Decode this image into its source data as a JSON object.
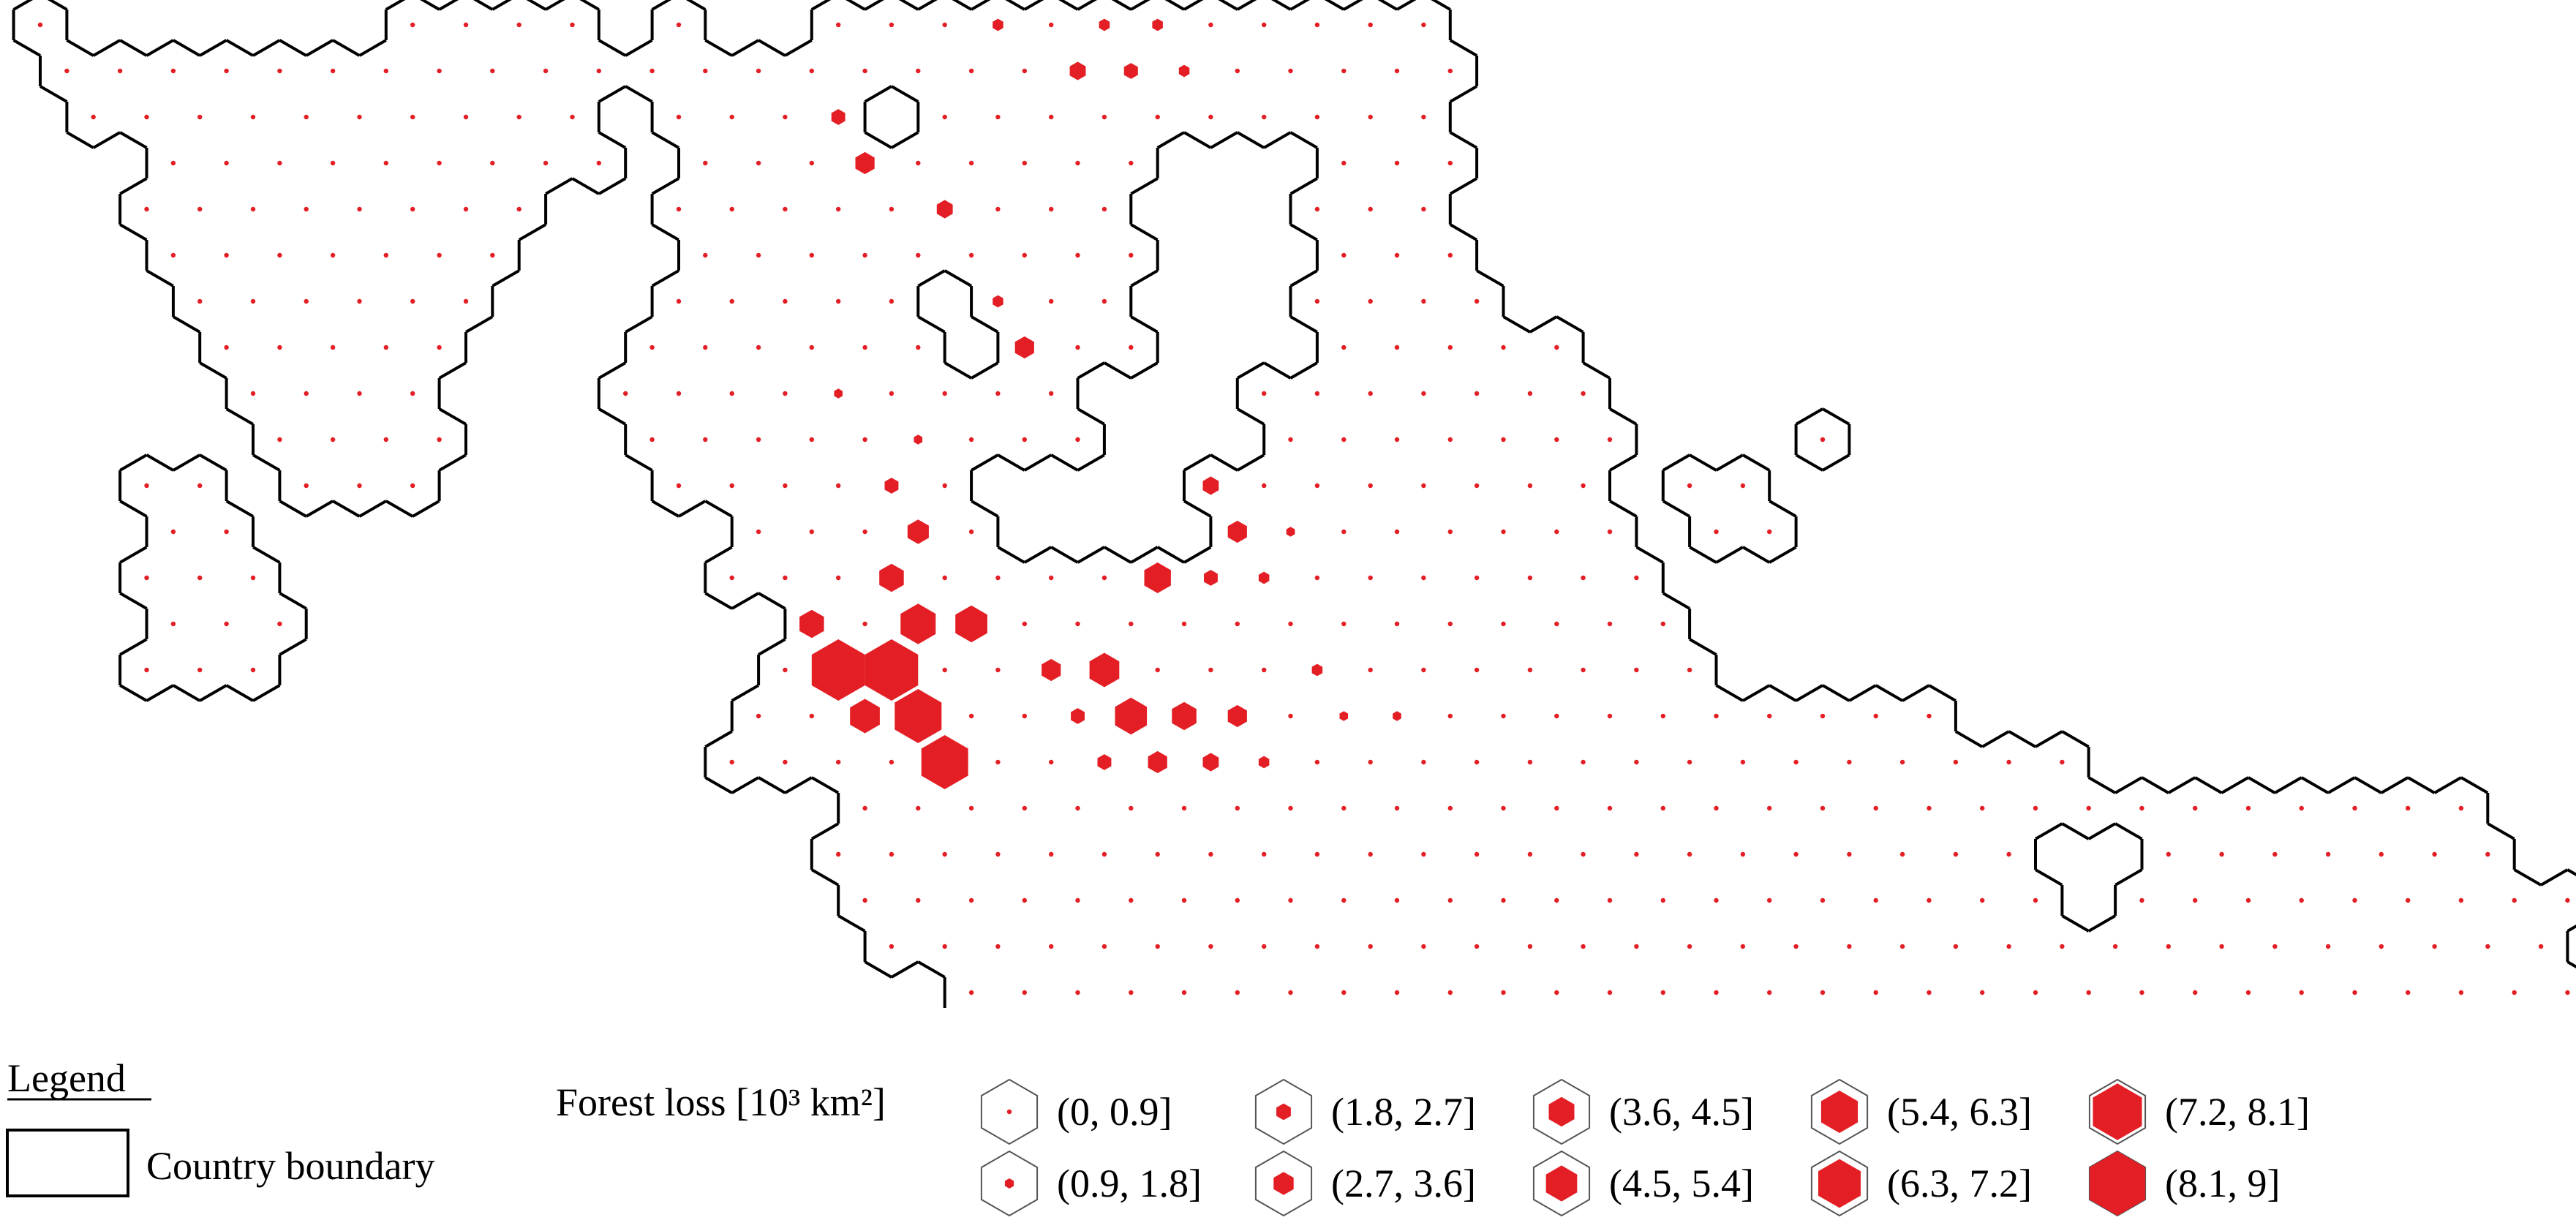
{
  "legend": {
    "title": "Legend",
    "boundary_label": "Country boundary",
    "forest_label": "Forest loss [10³ km²]"
  },
  "forest_classes": [
    {
      "label": "(0, 0.9]",
      "level": 0.03
    },
    {
      "label": "(0.9, 1.8]",
      "level": 0.16
    },
    {
      "label": "(1.8, 2.7]",
      "level": 0.26
    },
    {
      "label": "(2.7, 3.6]",
      "level": 0.36
    },
    {
      "label": "(3.6, 4.5]",
      "level": 0.46
    },
    {
      "label": "(4.5, 5.4]",
      "level": 0.56
    },
    {
      "label": "(5.4, 6.3]",
      "level": 0.66
    },
    {
      "label": "(6.3, 7.2]",
      "level": 0.76
    },
    {
      "label": "(7.2, 8.1]",
      "level": 0.88
    },
    {
      "label": "(8.1, 9]",
      "level": 1.0
    }
  ],
  "colors": {
    "loss": "#e31e24",
    "boundary": "#000000"
  }
}
